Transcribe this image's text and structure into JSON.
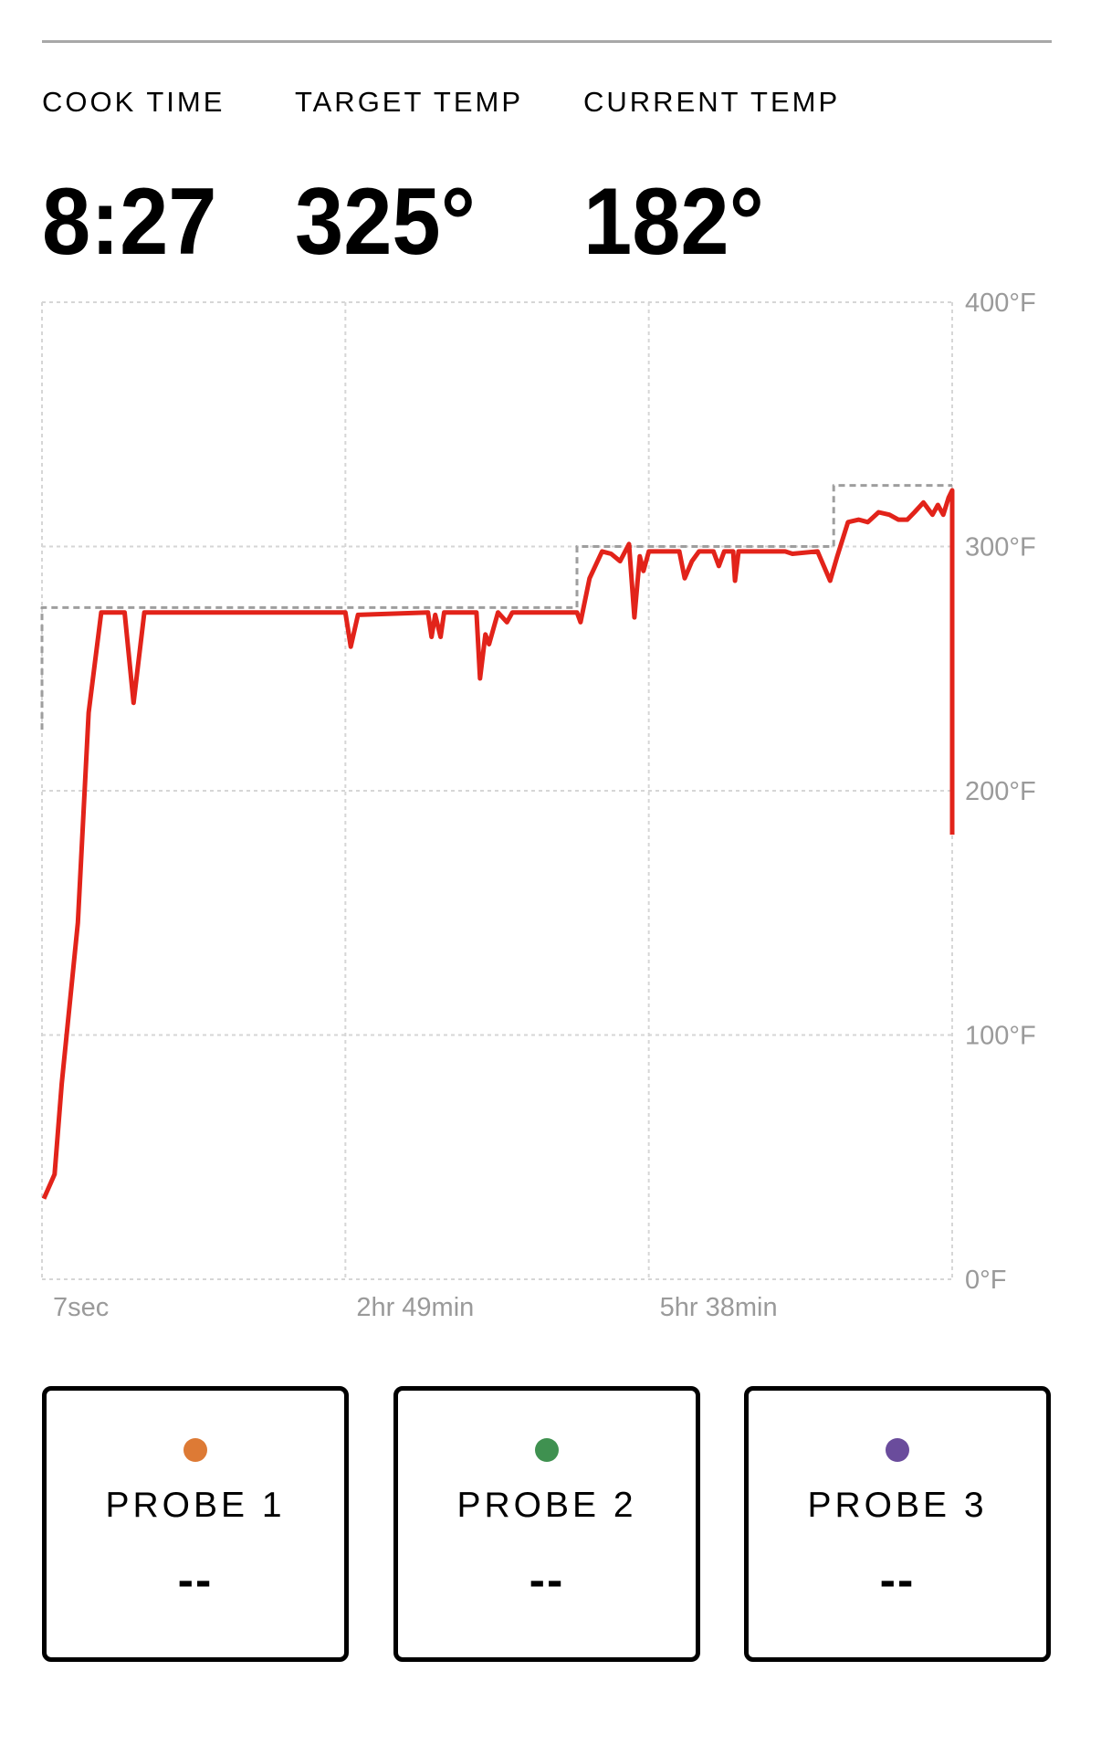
{
  "stats": [
    {
      "label": "COOK TIME",
      "value": "8:27"
    },
    {
      "label": "TARGET TEMP",
      "value": "325°"
    },
    {
      "label": "CURRENT TEMP",
      "value": "182°"
    }
  ],
  "chart_data": {
    "type": "line",
    "xlabel": "",
    "ylabel": "",
    "x_unit": "minutes",
    "xlim": [
      0,
      507
    ],
    "ylim": [
      0,
      400
    ],
    "x_ticks": [
      {
        "value": 0,
        "label": "7sec"
      },
      {
        "value": 169,
        "label": "2hr 49min"
      },
      {
        "value": 338,
        "label": "5hr 38min"
      }
    ],
    "y_ticks": [
      {
        "value": 0,
        "label": "0°F"
      },
      {
        "value": 100,
        "label": "100°F"
      },
      {
        "value": 200,
        "label": "200°F"
      },
      {
        "value": 300,
        "label": "300°F"
      },
      {
        "value": 400,
        "label": "400°F"
      }
    ],
    "grid": true,
    "series": [
      {
        "role": "target",
        "style": "dashed",
        "color": "#9e9e9e",
        "points": [
          [
            0,
            225
          ],
          [
            0,
            275
          ],
          [
            298,
            275
          ],
          [
            298,
            300
          ],
          [
            441,
            300
          ],
          [
            441,
            325
          ],
          [
            507,
            325
          ]
        ]
      },
      {
        "role": "current",
        "style": "solid",
        "color": "#e2231a",
        "points": [
          [
            1,
            33
          ],
          [
            7,
            43
          ],
          [
            11,
            80
          ],
          [
            20,
            146
          ],
          [
            26,
            232
          ],
          [
            33,
            273
          ],
          [
            46,
            273
          ],
          [
            51,
            236
          ],
          [
            57,
            273
          ],
          [
            169,
            273
          ],
          [
            172,
            259
          ],
          [
            176,
            272
          ],
          [
            215,
            273
          ],
          [
            217,
            263
          ],
          [
            219,
            272
          ],
          [
            222,
            263
          ],
          [
            224,
            273
          ],
          [
            242,
            273
          ],
          [
            244,
            246
          ],
          [
            247,
            264
          ],
          [
            249,
            260
          ],
          [
            254,
            273
          ],
          [
            259,
            269
          ],
          [
            262,
            273
          ],
          [
            298,
            273
          ],
          [
            300,
            269
          ],
          [
            305,
            287
          ],
          [
            312,
            298
          ],
          [
            317,
            297
          ],
          [
            322,
            294
          ],
          [
            327,
            301
          ],
          [
            330,
            271
          ],
          [
            333,
            296
          ],
          [
            335,
            290
          ],
          [
            338,
            298
          ],
          [
            355,
            298
          ],
          [
            358,
            287
          ],
          [
            362,
            294
          ],
          [
            366,
            298
          ],
          [
            374,
            298
          ],
          [
            377,
            292
          ],
          [
            380,
            298
          ],
          [
            385,
            298
          ],
          [
            386,
            286
          ],
          [
            388,
            298
          ],
          [
            414,
            298
          ],
          [
            418,
            297
          ],
          [
            432,
            298
          ],
          [
            439,
            286
          ],
          [
            443,
            296
          ],
          [
            449,
            310
          ],
          [
            455,
            311
          ],
          [
            460,
            310
          ],
          [
            466,
            314
          ],
          [
            472,
            313
          ],
          [
            477,
            311
          ],
          [
            482,
            311
          ],
          [
            486,
            314
          ],
          [
            491,
            318
          ],
          [
            496,
            313
          ],
          [
            499,
            317
          ],
          [
            502,
            313
          ],
          [
            505,
            320
          ],
          [
            507,
            323
          ],
          [
            507,
            182
          ]
        ]
      }
    ]
  },
  "probes": [
    {
      "name": "PROBE 1",
      "reading": "--",
      "color": "#dd7a35"
    },
    {
      "name": "PROBE 2",
      "reading": "--",
      "color": "#3f9150"
    },
    {
      "name": "PROBE 3",
      "reading": "--",
      "color": "#6a4c9c"
    }
  ]
}
